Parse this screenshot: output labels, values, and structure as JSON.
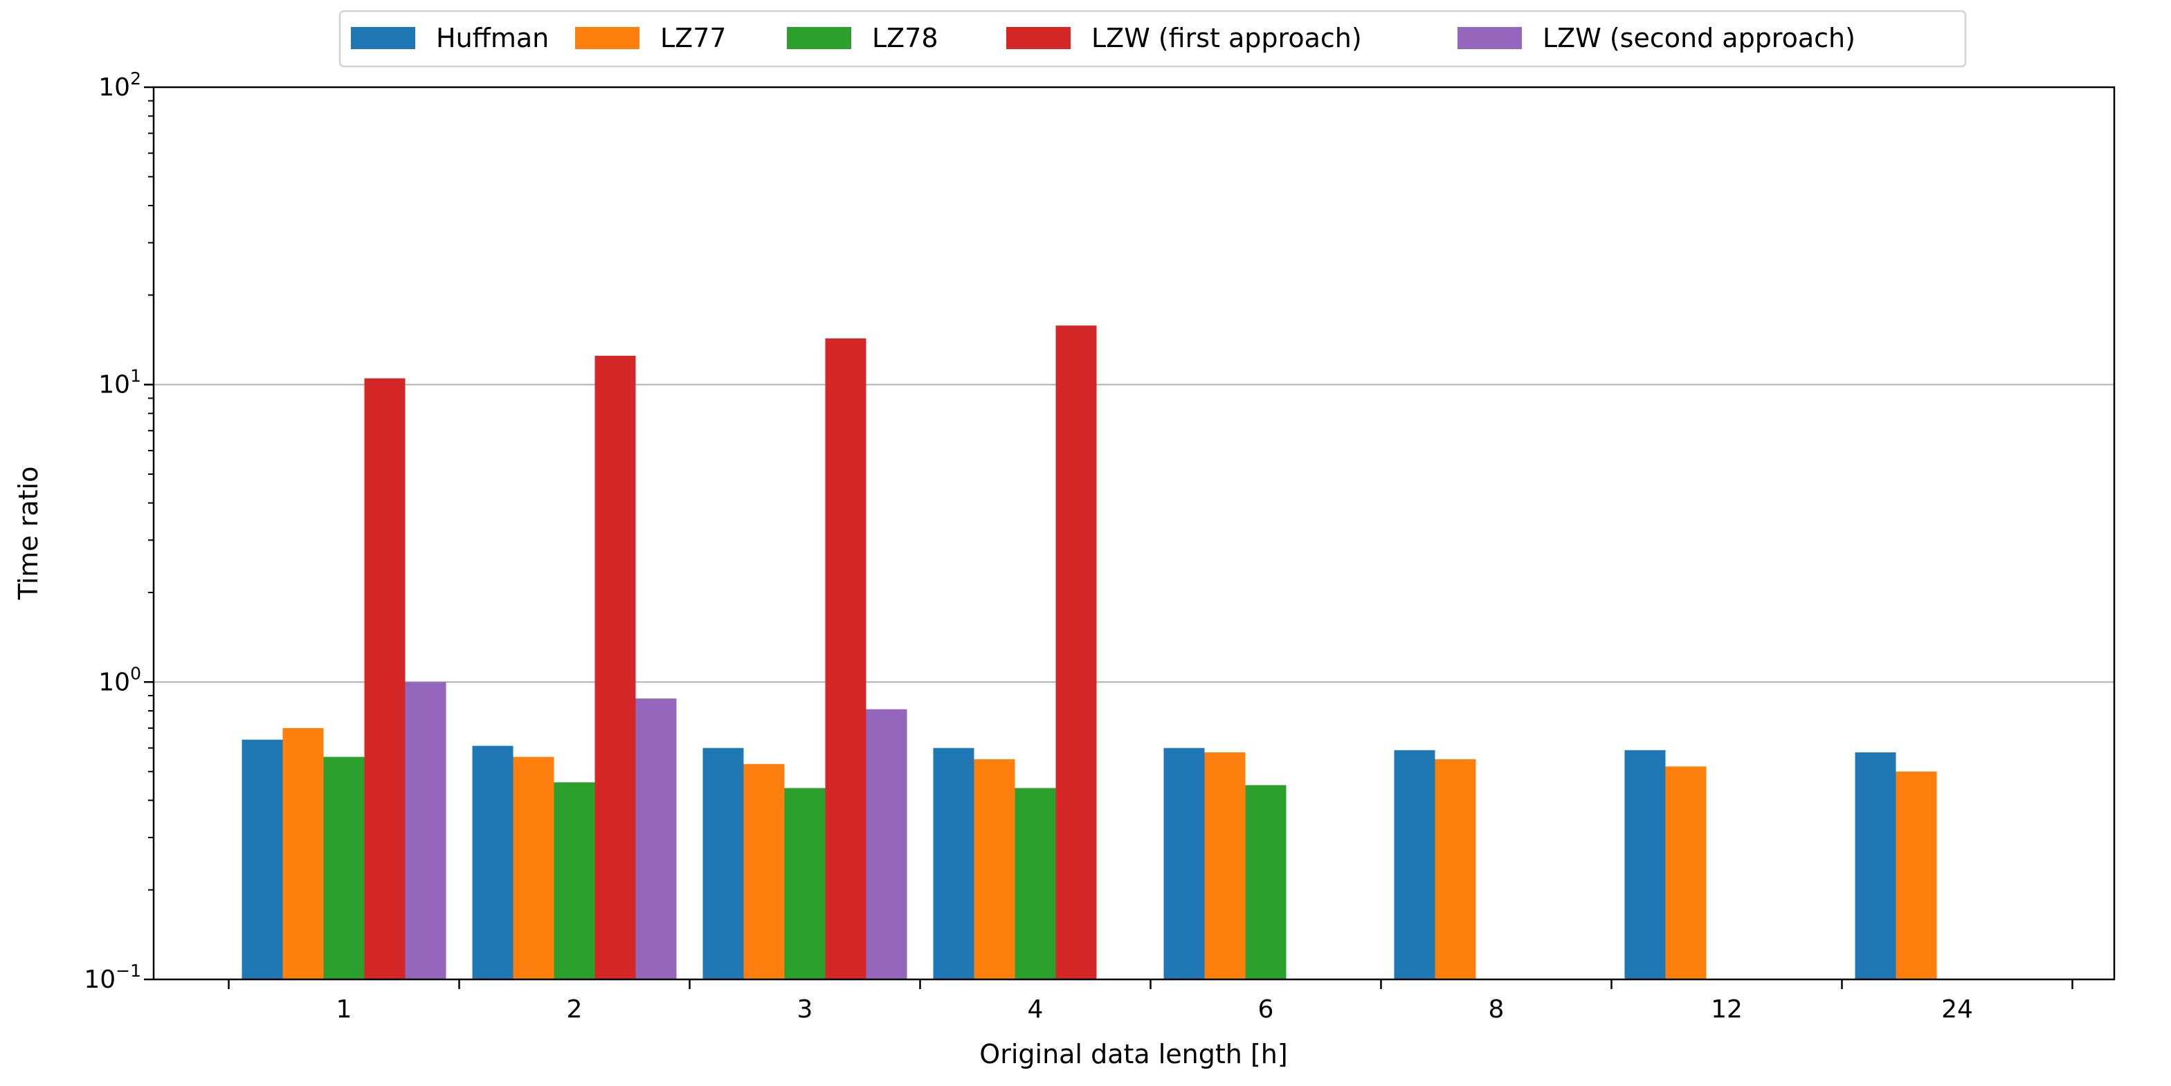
{
  "chart_data": {
    "type": "bar",
    "xlabel": "Original data length [h]",
    "ylabel": "Time ratio",
    "yscale": "log",
    "ylim": [
      0.1,
      100
    ],
    "y_tick_labels": [
      {
        "value": 0.1,
        "base": "10",
        "exp": "−1"
      },
      {
        "value": 1,
        "base": "10",
        "exp": "0"
      },
      {
        "value": 10,
        "base": "10",
        "exp": "1"
      },
      {
        "value": 100,
        "base": "10",
        "exp": "2"
      }
    ],
    "grid": "horizontal major",
    "legend_position": "top-center",
    "categories": [
      "1",
      "2",
      "3",
      "4",
      "6",
      "8",
      "12",
      "24"
    ],
    "series": [
      {
        "name": "Huffman",
        "color": "#1f77b4",
        "values": [
          0.64,
          0.61,
          0.6,
          0.6,
          0.6,
          0.59,
          0.59,
          0.58
        ]
      },
      {
        "name": "LZ77",
        "color": "#ff7f0e",
        "values": [
          0.7,
          0.56,
          0.53,
          0.55,
          0.58,
          0.55,
          0.52,
          0.5
        ]
      },
      {
        "name": "LZ78",
        "color": "#2ca02c",
        "values": [
          0.56,
          0.46,
          0.44,
          0.44,
          0.45,
          null,
          null,
          null
        ]
      },
      {
        "name": "LZW (first approach)",
        "color": "#d62728",
        "values": [
          10.5,
          12.5,
          14.3,
          15.8,
          null,
          null,
          null,
          null
        ]
      },
      {
        "name": "LZW (second approach)",
        "color": "#9467bd",
        "values": [
          1.0,
          0.88,
          0.81,
          null,
          null,
          null,
          null,
          null
        ]
      }
    ]
  }
}
